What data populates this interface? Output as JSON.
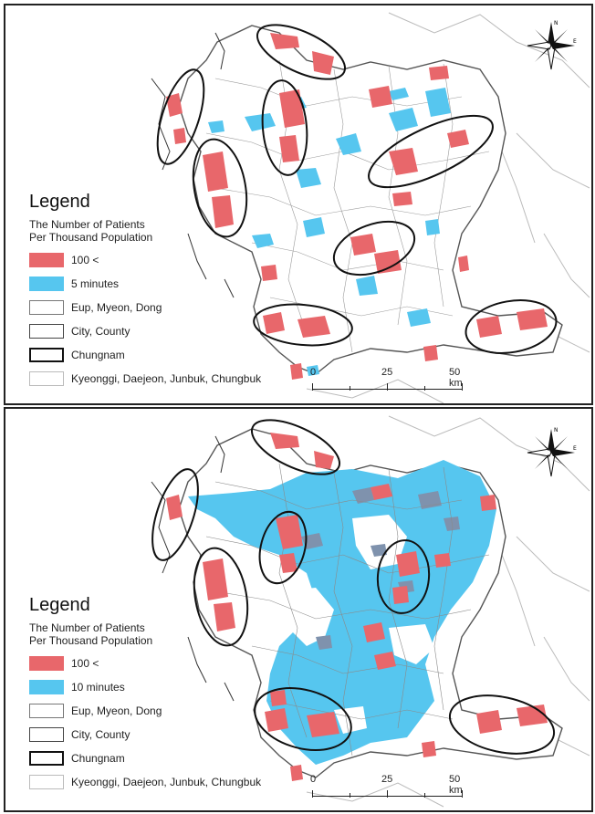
{
  "colors": {
    "patients": "#e8676b",
    "access": "#56c6ef",
    "overlap": "#7f92ad",
    "boundary": "#9a9a9a",
    "chungnam": "#222222",
    "neighbor": "#bbbbbb"
  },
  "compass": {
    "icon": "north-arrow-icon",
    "north": "N",
    "east": "E"
  },
  "panels": [
    {
      "id": "five-minutes",
      "legend": {
        "title": "Legend",
        "subtitle": [
          "The Number of Patients",
          "Per Thousand Population"
        ],
        "items": [
          {
            "label": "100 <",
            "swatch": "fill-red"
          },
          {
            "label": "5 minutes",
            "swatch": "fill-blue"
          },
          {
            "label": "Eup, Myeon, Dong",
            "swatch": "outline-thin"
          },
          {
            "label": "City, County",
            "swatch": "outline-medium"
          },
          {
            "label": "Chungnam",
            "swatch": "outline-thick"
          },
          {
            "label": "Kyeonggi, Daejeon, Junbuk, Chungbuk",
            "swatch": "outline-light"
          }
        ]
      },
      "scale": {
        "labels": [
          "0",
          "25",
          "50 km"
        ]
      }
    },
    {
      "id": "ten-minutes",
      "legend": {
        "title": "Legend",
        "subtitle": [
          "The Number of Patients",
          "Per Thousand Population"
        ],
        "items": [
          {
            "label": "100 <",
            "swatch": "fill-red"
          },
          {
            "label": "10 minutes",
            "swatch": "fill-blue"
          },
          {
            "label": "Eup, Myeon, Dong",
            "swatch": "outline-thin"
          },
          {
            "label": "City, County",
            "swatch": "outline-medium"
          },
          {
            "label": "Chungnam",
            "swatch": "outline-thick"
          },
          {
            "label": "Kyeonggi, Daejeon, Junbuk, Chungbuk",
            "swatch": "outline-light"
          }
        ]
      },
      "scale": {
        "labels": [
          "0",
          "25",
          "50 km"
        ]
      }
    }
  ]
}
